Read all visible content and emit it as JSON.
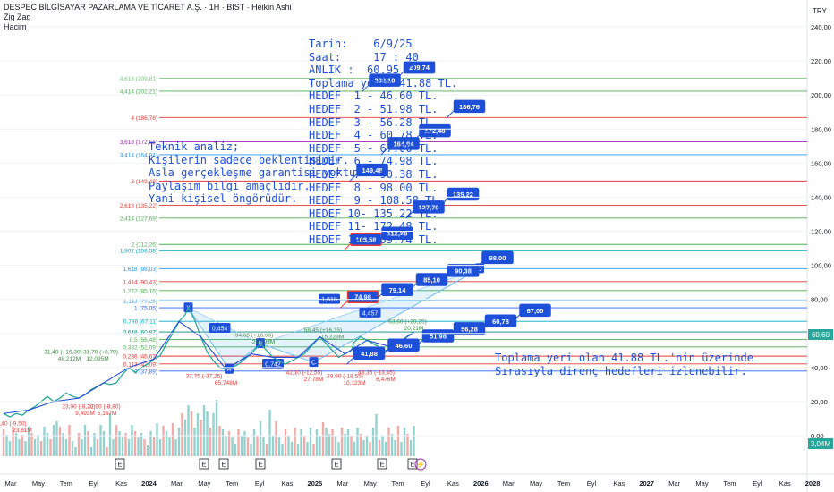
{
  "header": {
    "title": "DESPEC BİLGİSAYAR PAZARLAMA VE TİCARET A.Ş. · 1H · BIST · Heikin Ashi",
    "indicator1": "Zig Zag",
    "indicator2": "Hacim",
    "currency": "TRY"
  },
  "notes": {
    "targets": "Tarih:    6/9/25\nSaat:     17 : 40\nANLIK :  60.95 TL.\nToplama yeri: 41.88 TL.\nHEDEF  1 - 46.60 TL.\nHEDEF  2 - 51.98 TL.\nHEDEF  3 - 56.28 TL.\nHEDEF  4 - 60.78 TL.\nHEDEF  5 - 67.00 TL.\nHEDEF  6 - 74.98 TL.\nHEDEF  7 - 90.38 TL.\nHEDEF  8 - 98.00 TL.\nHEDEF  9 - 108.58 TL.\nHEDEF 10- 135.22 TL.\nHEDEF 11- 172.48 TL.\nHEDEF 12- 209.74 TL.",
    "analysis": "Teknik analiz;\nKişilerin sadece beklentisidir.\nAsla gerçekleşme garantisi yoktur.\nPaylaşım bilgi amaçlıdır.\nYani kişisel öngörüdür.",
    "support": "Toplama yeri olan 41.88 TL.'nin üzerinde\nSırasıyla direnç hedefleri izlenebilir."
  },
  "chart_data": {
    "type": "line",
    "title": "DESPEC BİLGİSAYAR PAZARLAMA VE TİCARET A.Ş. · 1H · BIST · Heikin Ashi",
    "ylim": [
      0,
      240
    ],
    "y_ticks": [
      "240,00",
      "220,00",
      "200,00",
      "180,00",
      "160,00",
      "140,00",
      "120,00",
      "100,00",
      "80,00",
      "60,00",
      "40,00",
      "20,00",
      "0,00"
    ],
    "y_tick_values": [
      240,
      220,
      200,
      180,
      160,
      140,
      120,
      100,
      80,
      60,
      40,
      20,
      0
    ],
    "x_ticks": [
      "Mar",
      "May",
      "Tem",
      "Eyl",
      "Kas",
      "2024",
      "Mar",
      "May",
      "Tem",
      "Eyl",
      "Kas",
      "2025",
      "Mar",
      "May",
      "Tem",
      "Eyl",
      "Kas",
      "2026",
      "Mar",
      "May",
      "Tem",
      "Eyl",
      "Kas",
      "2027",
      "Mar",
      "May",
      "Tem",
      "Eyl",
      "Kas",
      "2028"
    ],
    "last_price": "60,60",
    "last_volume": "3,04M",
    "price_series": [
      [
        0,
        13
      ],
      [
        2,
        11
      ],
      [
        4,
        13
      ],
      [
        6,
        12
      ],
      [
        8,
        15
      ],
      [
        10,
        17
      ],
      [
        12,
        20
      ],
      [
        14,
        23
      ],
      [
        16,
        20
      ],
      [
        18,
        22
      ],
      [
        20,
        25
      ],
      [
        22,
        23
      ],
      [
        24,
        22
      ],
      [
        26,
        24
      ],
      [
        28,
        27
      ],
      [
        30,
        29
      ],
      [
        32,
        31
      ],
      [
        34,
        30
      ],
      [
        36,
        31
      ],
      [
        38,
        36
      ],
      [
        40,
        40
      ],
      [
        42,
        37
      ],
      [
        44,
        40
      ],
      [
        46,
        42
      ],
      [
        48,
        45
      ],
      [
        50,
        47
      ],
      [
        52,
        54
      ],
      [
        54,
        60
      ],
      [
        56,
        67
      ],
      [
        58,
        71
      ],
      [
        59,
        75
      ],
      [
        61,
        68
      ],
      [
        63,
        58
      ],
      [
        65,
        49
      ],
      [
        67,
        44
      ],
      [
        69,
        40
      ],
      [
        71,
        39
      ],
      [
        73,
        40
      ],
      [
        75,
        42
      ],
      [
        77,
        45
      ],
      [
        79,
        48
      ],
      [
        81,
        52
      ],
      [
        82,
        54
      ],
      [
        84,
        50
      ],
      [
        86,
        46
      ],
      [
        88,
        44
      ],
      [
        90,
        42
      ],
      [
        92,
        44
      ],
      [
        94,
        46
      ],
      [
        96,
        48
      ],
      [
        98,
        52
      ],
      [
        100,
        56
      ],
      [
        101,
        58
      ],
      [
        103,
        54
      ],
      [
        105,
        50
      ],
      [
        107,
        46
      ],
      [
        109,
        48
      ],
      [
        111,
        50
      ],
      [
        112,
        55
      ],
      [
        114,
        58
      ],
      [
        116,
        56
      ],
      [
        118,
        54
      ],
      [
        120,
        52
      ],
      [
        122,
        50
      ],
      [
        124,
        52
      ],
      [
        126,
        54
      ],
      [
        128,
        57
      ],
      [
        130,
        60
      ],
      [
        131,
        60.6
      ]
    ],
    "fib_levels": [
      {
        "label": "4,618 (209,81)",
        "value": 209.81,
        "color": "#81c784"
      },
      {
        "label": "4,414 (202,21)",
        "value": 202.21,
        "color": "#4caf50"
      },
      {
        "label": "4 (186,78)",
        "value": 186.78,
        "color": "#e53935"
      },
      {
        "label": "3,618 (172,55)",
        "value": 172.55,
        "color": "#9c27b0"
      },
      {
        "label": "3,414 (164,94)",
        "value": 164.94,
        "color": "#2196f3"
      },
      {
        "label": "3 (149,48)",
        "value": 149.48,
        "color": "#e53935"
      },
      {
        "label": "2,618 (135,22)",
        "value": 135.22,
        "color": "#e53935"
      },
      {
        "label": "2,414 (127,69)",
        "value": 127.69,
        "color": "#4caf50"
      },
      {
        "label": "2 (112,26)",
        "value": 112.26,
        "color": "#4caf50"
      },
      {
        "label": "1,902 (108,58)",
        "value": 108.58,
        "color": "#00acc1"
      },
      {
        "label": "1,618 (98,03)",
        "value": 98.03,
        "color": "#2196f3"
      },
      {
        "label": "1,414 (90,43)",
        "value": 90.43,
        "color": "#e53935"
      },
      {
        "label": "1,272 (85,15)",
        "value": 85.15,
        "color": "#4caf50"
      },
      {
        "label": "1,113 (79,25)",
        "value": 79.25,
        "color": "#2196f3"
      },
      {
        "label": "1 (75,05)",
        "value": 75.05,
        "color": "#2962ff"
      },
      {
        "label": "0,786 (67,11)",
        "value": 67.11,
        "color": "#00acc1"
      },
      {
        "label": "0,618 (60,87)",
        "value": 60.87,
        "color": "#00897b"
      },
      {
        "label": "0,5 (56,48)",
        "value": 56.48,
        "color": "#4caf50"
      },
      {
        "label": "0,382 (52,09)",
        "value": 52.09,
        "color": "#4caf50"
      },
      {
        "label": "0,236 (46,67)",
        "value": 46.67,
        "color": "#e53935"
      },
      {
        "label": "0,113 (42,09)",
        "value": 42.09,
        "color": "#e53935"
      },
      {
        "label": "0 (37,89)",
        "value": 37.89,
        "color": "#2962ff"
      }
    ],
    "target_labels": [
      {
        "text": "41,88",
        "value": 41.88,
        "x": 113,
        "border": "#1e4fd8"
      },
      {
        "text": "46,60",
        "value": 46.6,
        "x": 124,
        "border": "#1e4fd8"
      },
      {
        "text": "51,98",
        "value": 51.98,
        "x": 135,
        "border": "#1e4fd8"
      },
      {
        "text": "56,28",
        "value": 56.28,
        "x": 145,
        "border": "#1e4fd8"
      },
      {
        "text": "60,78",
        "value": 60.78,
        "x": 155,
        "border": "#1e4fd8"
      },
      {
        "text": "67,00",
        "value": 67.0,
        "x": 166,
        "border": "#1e4fd8"
      },
      {
        "text": "74,98",
        "value": 74.98,
        "x": 111,
        "border": "#e53935"
      },
      {
        "text": "79,14",
        "value": 79.14,
        "x": 122,
        "border": "#1e4fd8"
      },
      {
        "text": "85,10",
        "value": 85.1,
        "x": 133,
        "border": "#1e4fd8"
      },
      {
        "text": "90,38",
        "value": 90.38,
        "x": 143,
        "border": "#1e4fd8"
      },
      {
        "text": "98,00",
        "value": 98.0,
        "x": 154,
        "border": "#1e4fd8"
      },
      {
        "text": "108,58",
        "value": 108.58,
        "x": 112,
        "border": "#e53935"
      },
      {
        "text": "112,26",
        "value": 112.26,
        "x": 122,
        "border": "#1e4fd8"
      },
      {
        "text": "127,70",
        "value": 127.7,
        "x": 132,
        "border": "#1e4fd8"
      },
      {
        "text": "135,22",
        "value": 135.22,
        "x": 143,
        "border": "#1e4fd8"
      },
      {
        "text": "149,48",
        "value": 149.48,
        "x": 114,
        "border": "#1e4fd8"
      },
      {
        "text": "164,94",
        "value": 164.94,
        "x": 124,
        "border": "#1e4fd8"
      },
      {
        "text": "172,48",
        "value": 172.48,
        "x": 134,
        "border": "#1e4fd8"
      },
      {
        "text": "186,76",
        "value": 186.76,
        "x": 145,
        "border": "#1e4fd8"
      },
      {
        "text": "202,10",
        "value": 202.1,
        "x": 118,
        "border": "#1e4fd8"
      },
      {
        "text": "209,74",
        "value": 209.74,
        "x": 129,
        "border": "#1e4fd8"
      }
    ],
    "pattern_points": [
      {
        "label": "X",
        "x": 59,
        "y": 75
      },
      {
        "label": "A",
        "x": 72,
        "y": 39
      },
      {
        "label": "B",
        "x": 82,
        "y": 54
      },
      {
        "label": "C",
        "x": 99,
        "y": 43
      },
      {
        "label": "D",
        "x": 152,
        "y": 98
      }
    ],
    "pattern_annotations": [
      {
        "text": "0,454",
        "x": 69,
        "y": 63
      },
      {
        "text": "0,742",
        "x": 86,
        "y": 42
      },
      {
        "text": "1,618",
        "x": 104,
        "y": 80
      },
      {
        "text": "4,457",
        "x": 117,
        "y": 72
      }
    ],
    "swing_labels": [
      {
        "text": "14,40 (-9,50)",
        "x": 2,
        "y": 6,
        "color": "#e53935"
      },
      {
        "text": "23,61M",
        "x": 6,
        "y": 2,
        "color": "#e53935"
      },
      {
        "text": "23,00 (-8,30)",
        "x": 24,
        "y": 16,
        "color": "#e53935"
      },
      {
        "text": "22,90 (-8,80)",
        "x": 32,
        "y": 16,
        "color": "#e53935"
      },
      {
        "text": "9,493M",
        "x": 26,
        "y": 12,
        "color": "#e53935"
      },
      {
        "text": "5,167M",
        "x": 33,
        "y": 12,
        "color": "#e53935"
      },
      {
        "text": "31,40 (+16,30)",
        "x": 19,
        "y": 48,
        "color": "#388e3c"
      },
      {
        "text": "31,70 (+8,70)",
        "x": 31,
        "y": 48,
        "color": "#388e3c"
      },
      {
        "text": "48,212M",
        "x": 21,
        "y": 44,
        "color": "#388e3c"
      },
      {
        "text": "12,095M",
        "x": 30,
        "y": 44,
        "color": "#388e3c"
      },
      {
        "text": "37,75 (-37,25)",
        "x": 64,
        "y": 34,
        "color": "#e53935"
      },
      {
        "text": "65,748M",
        "x": 71,
        "y": 30,
        "color": "#e53935"
      },
      {
        "text": "54,65 (+16,90)",
        "x": 80,
        "y": 58,
        "color": "#388e3c"
      },
      {
        "text": "23,493M",
        "x": 83,
        "y": 54,
        "color": "#388e3c"
      },
      {
        "text": "42,10 (-12,55)",
        "x": 96,
        "y": 36,
        "color": "#e53935"
      },
      {
        "text": "27,78M",
        "x": 99,
        "y": 32,
        "color": "#e53935"
      },
      {
        "text": "58,45 (+16,35)",
        "x": 102,
        "y": 61,
        "color": "#388e3c"
      },
      {
        "text": "15,223M",
        "x": 105,
        "y": 57,
        "color": "#388e3c"
      },
      {
        "text": "39,90 (-18,55)",
        "x": 109,
        "y": 34,
        "color": "#e53935"
      },
      {
        "text": "10,123M",
        "x": 112,
        "y": 30,
        "color": "#e53935"
      },
      {
        "text": "43,35 (-13,45)",
        "x": 119,
        "y": 36,
        "color": "#e53935"
      },
      {
        "text": "6,476M",
        "x": 122,
        "y": 32,
        "color": "#e53935"
      },
      {
        "text": "63,60 (+20,25)",
        "x": 129,
        "y": 66,
        "color": "#388e3c"
      },
      {
        "text": "20,21M",
        "x": 131,
        "y": 62,
        "color": "#388e3c"
      }
    ],
    "event_marks": [
      "E",
      "E",
      "E",
      "E",
      "E",
      "E",
      "E"
    ]
  }
}
